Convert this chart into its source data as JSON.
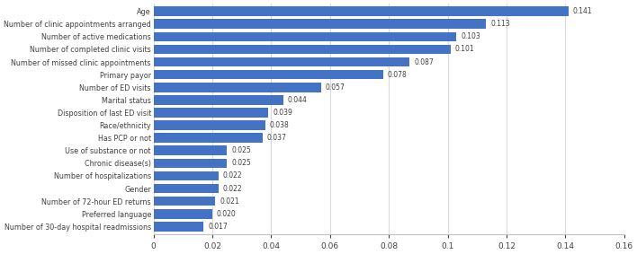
{
  "categories": [
    "Number of 30-day hospital readmissions",
    "Preferred language",
    "Number of 72-hour ED returns",
    "Gender",
    "Number of hospitalizations",
    "Chronic disease(s)",
    "Use of substance or not",
    "Has PCP or not",
    "Race/ethnicity",
    "Disposition of last ED visit",
    "Marital status",
    "Number of ED visits",
    "Primary payor",
    "Number of missed clinic appointments",
    "Number of completed clinic visits",
    "Number of active medications",
    "Number of clinic appointments arranged",
    "Age"
  ],
  "values": [
    0.017,
    0.02,
    0.021,
    0.022,
    0.022,
    0.025,
    0.025,
    0.037,
    0.038,
    0.039,
    0.044,
    0.057,
    0.078,
    0.087,
    0.101,
    0.103,
    0.113,
    0.141
  ],
  "bar_color": "#4472C4",
  "background_color": "#FFFFFF",
  "plot_bg_color": "#FFFFFF",
  "xlim": [
    0,
    0.16
  ],
  "xticks": [
    0,
    0.02,
    0.04,
    0.06,
    0.08,
    0.1,
    0.12,
    0.14,
    0.16
  ],
  "grid_color": "#D9D9D9",
  "text_color": "#404040",
  "bar_height": 0.75
}
